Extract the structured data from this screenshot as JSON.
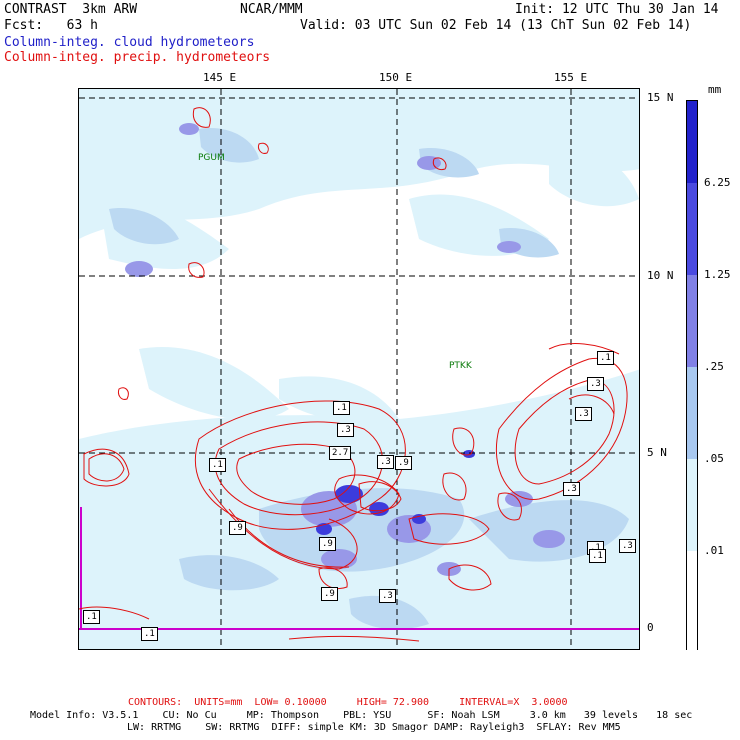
{
  "header": {
    "model": "CONTRAST  3km ARW",
    "org": "NCAR/MMM",
    "init": "Init: 12 UTC Thu 30 Jan 14",
    "fcst": "Fcst:   63 h",
    "valid": "Valid: 03 UTC Sun 02 Feb 14 (13 ChT Sun 02 Feb 14)",
    "field1": "Column-integ. cloud hydrometeors",
    "field2": "Column-integ. precip. hydrometeors"
  },
  "map": {
    "lon_labels": [
      "145 E",
      "150 E",
      "155 E"
    ],
    "lat_labels": [
      "15 N",
      "10 N",
      "5 N",
      "0"
    ],
    "stations": [
      "PGUM",
      "PTKK"
    ],
    "contour_labels": [
      ".1",
      ".3",
      ".3",
      ".1",
      ".3",
      ".9",
      ".1",
      "2.7",
      ".3",
      ".9",
      ".3",
      ".1",
      ".3",
      ".9",
      ".3",
      ".9",
      ".1",
      ".1",
      ".1"
    ],
    "colors": {
      "light": "#ddf3fb",
      "mid": "#bcd9f2",
      "lavender": "#9898e8",
      "blue": "#3c3cdc",
      "contour": "#e01010",
      "equator": "#cc00cc"
    }
  },
  "colorbar": {
    "unit": "mm",
    "labels": [
      "6.25",
      "1.25",
      ".25",
      ".05",
      ".01"
    ],
    "colors": [
      "#2222cc",
      "#4a4ae0",
      "#8080e6",
      "#a8c8f0",
      "#ddf3fb",
      "#ffffff"
    ]
  },
  "footer": {
    "contours": "CONTOURS:  UNITS=mm  LOW= 0.10000     HIGH= 72.900     INTERVAL=X  3.0000",
    "model_info1": "Model Info: V3.5.1    CU: No Cu     MP: Thompson    PBL: YSU      SF: Noah LSM     3.0 km   39 levels   18 sec",
    "model_info2": "LW: RRTMG    SW: RRTMG  DIFF: simple KM: 3D Smagor DAMP: Rayleigh3  SFLAY: Rev MM5"
  }
}
